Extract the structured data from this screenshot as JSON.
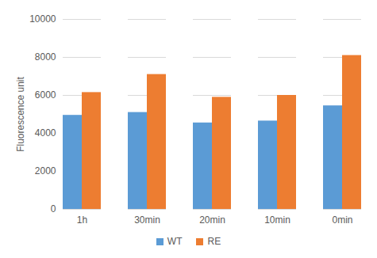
{
  "chart_data": {
    "type": "bar",
    "y_label": "Fluorescence unit",
    "categories": [
      "1h",
      "30min",
      "20min",
      "10min",
      "0min"
    ],
    "series": [
      {
        "name": "WT",
        "color": "#5b9bd5",
        "values": [
          4950,
          5100,
          4550,
          4650,
          5450
        ]
      },
      {
        "name": "RE",
        "color": "#ed7d31",
        "values": [
          6150,
          7100,
          5900,
          6000,
          8100
        ]
      }
    ],
    "ylim": [
      0,
      10000
    ],
    "yticks": [
      0,
      2000,
      4000,
      6000,
      8000,
      10000
    ],
    "grid": true,
    "legend": "bottom"
  }
}
